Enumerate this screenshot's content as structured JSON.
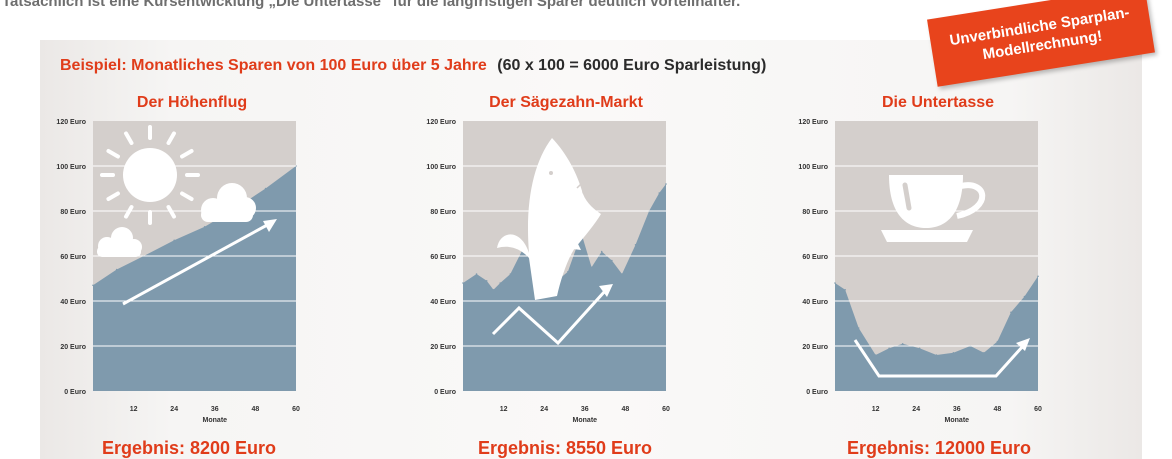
{
  "intro_text": "Tatsächlich ist eine Kursentwicklung „Die Untertasse“ für die langfristigen Sparer deutlich vorteilhafter.",
  "headline": {
    "red": "Beispiel: Monatliches Sparen von 100 Euro über 5 Jahre",
    "dark": "(60 x 100 = 6000 Euro Sparleistung)"
  },
  "stamp": {
    "line1": "Unverbindliche Sparplan-",
    "line2": "Modellrechnung!"
  },
  "colors": {
    "accent": "#e03c1a",
    "chart_bg": "#d4cfcc",
    "area": "#7f9aad",
    "grid": "#ffffff"
  },
  "chart_data": [
    {
      "type": "area",
      "title": "Der Höhenflug",
      "xlabel": "Monate",
      "ylabel": "",
      "x_ticks": [
        "12",
        "24",
        "36",
        "48",
        "60"
      ],
      "y_ticks": [
        "0 Euro",
        "20 Euro",
        "40 Euro",
        "60 Euro",
        "80 Euro",
        "100 Euro",
        "120 Euro"
      ],
      "xlim": [
        0,
        60
      ],
      "ylim": [
        0,
        120
      ],
      "grid": true,
      "x": [
        0,
        7,
        15,
        24,
        33,
        42,
        51,
        60
      ],
      "values": [
        47,
        54,
        60,
        67,
        73,
        81,
        90,
        100
      ],
      "illustration": [
        "sun-icon",
        "cloud-icon",
        "trend-up-arrow"
      ],
      "result": "Ergebnis: 8200 Euro"
    },
    {
      "type": "area",
      "title": "Der Sägezahn-Markt",
      "xlabel": "Monate",
      "ylabel": "",
      "x_ticks": [
        "12",
        "24",
        "36",
        "48",
        "60"
      ],
      "y_ticks": [
        "0 Euro",
        "20 Euro",
        "40 Euro",
        "60 Euro",
        "80 Euro",
        "100 Euro",
        "120 Euro"
      ],
      "xlim": [
        0,
        60
      ],
      "ylim": [
        0,
        120
      ],
      "grid": true,
      "x": [
        0,
        4,
        7,
        9,
        11,
        14,
        18,
        22,
        27,
        31,
        35,
        38,
        41,
        44,
        47,
        51,
        55,
        58,
        60
      ],
      "values": [
        48,
        52,
        49,
        45,
        48,
        52,
        64,
        55,
        48,
        53,
        70,
        55,
        62,
        58,
        52,
        65,
        80,
        88,
        92
      ],
      "illustration": [
        "shark-icon",
        "zigzag-arrow"
      ],
      "result": "Ergebnis: 8550 Euro"
    },
    {
      "type": "area",
      "title": "Die Untertasse",
      "xlabel": "Monate",
      "ylabel": "",
      "x_ticks": [
        "12",
        "24",
        "36",
        "48",
        "60"
      ],
      "y_ticks": [
        "0 Euro",
        "20 Euro",
        "40 Euro",
        "60 Euro",
        "80 Euro",
        "100 Euro",
        "120 Euro"
      ],
      "xlim": [
        0,
        60
      ],
      "ylim": [
        0,
        120
      ],
      "grid": true,
      "x": [
        0,
        3,
        7,
        12,
        16,
        20,
        25,
        30,
        35,
        40,
        44,
        48,
        52,
        56,
        60
      ],
      "values": [
        48,
        45,
        28,
        16,
        19,
        21,
        19,
        16,
        17,
        20,
        17,
        22,
        35,
        42,
        51
      ],
      "illustration": [
        "cup-icon",
        "u-arrow"
      ],
      "result": "Ergebnis: 12000 Euro"
    }
  ]
}
